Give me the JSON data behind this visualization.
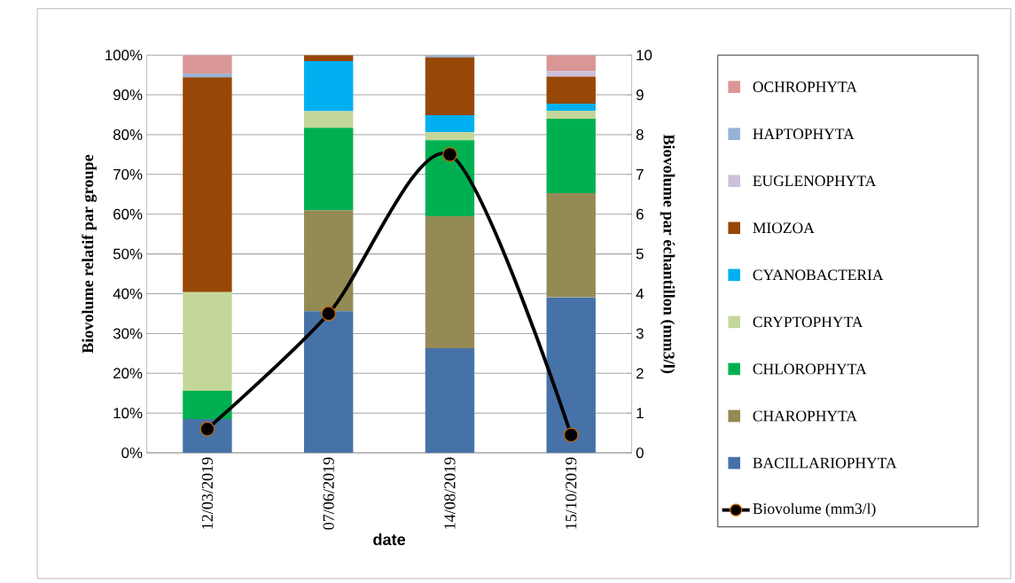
{
  "chart_data": {
    "type": "bar",
    "stacked": true,
    "xlabel": "date",
    "ylabel": "Biovolume relatif par groupe",
    "y2label": "Biovolume par échantillon (mm3/l)",
    "categories": [
      "12/03/2019",
      "07/06/2019",
      "14/08/2019",
      "15/10/2019"
    ],
    "ylim": [
      0,
      100
    ],
    "yticks": [
      {
        "value": 0,
        "label": "0%"
      },
      {
        "value": 10,
        "label": "10%"
      },
      {
        "value": 20,
        "label": "20%"
      },
      {
        "value": 30,
        "label": "30%"
      },
      {
        "value": 40,
        "label": "40%"
      },
      {
        "value": 50,
        "label": "50%"
      },
      {
        "value": 60,
        "label": "60%"
      },
      {
        "value": 70,
        "label": "70%"
      },
      {
        "value": 80,
        "label": "80%"
      },
      {
        "value": 90,
        "label": "90%"
      },
      {
        "value": 100,
        "label": "100%"
      }
    ],
    "y2lim": [
      0,
      10
    ],
    "y2ticks": [
      0,
      1,
      2,
      3,
      4,
      5,
      6,
      7,
      8,
      9,
      10
    ],
    "grid": "y",
    "legend": "right",
    "series": [
      {
        "name": "BACILLARIOPHYTA",
        "color": "#4672a8",
        "values": [
          8.5,
          35.6,
          26.3,
          39.1
        ]
      },
      {
        "name": "CHAROPHYTA",
        "color": "#948a54",
        "values": [
          0,
          25.4,
          33.2,
          26.2
        ]
      },
      {
        "name": "CHLOROPHYTA",
        "color": "#00b050",
        "values": [
          7.1,
          20.7,
          19.1,
          18.7
        ]
      },
      {
        "name": "CRYPTOPHYTA",
        "color": "#c4d79b",
        "values": [
          24.8,
          4.2,
          2.0,
          2.0
        ]
      },
      {
        "name": "CYANOBACTERIA",
        "color": "#00b0f0",
        "values": [
          0,
          12.6,
          4.3,
          1.8
        ]
      },
      {
        "name": "MIOZOA",
        "color": "#974706",
        "values": [
          54.0,
          1.5,
          14.5,
          6.8
        ]
      },
      {
        "name": "EUGLENOPHYTA",
        "color": "#ccc0da",
        "values": [
          0,
          0,
          0,
          1.4
        ]
      },
      {
        "name": "HAPTOPHYTA",
        "color": "#95b3d7",
        "values": [
          0.9,
          0,
          0.6,
          0
        ]
      },
      {
        "name": "OCHROPHYTA",
        "color": "#da9694",
        "values": [
          4.7,
          0,
          0,
          4.0
        ]
      },
      {
        "name": "Biovolume (mm3/l)",
        "type": "line",
        "axis": "y2",
        "marker": "circle",
        "color": "#000000",
        "values": [
          0.6,
          3.5,
          7.5,
          0.45
        ]
      }
    ]
  }
}
